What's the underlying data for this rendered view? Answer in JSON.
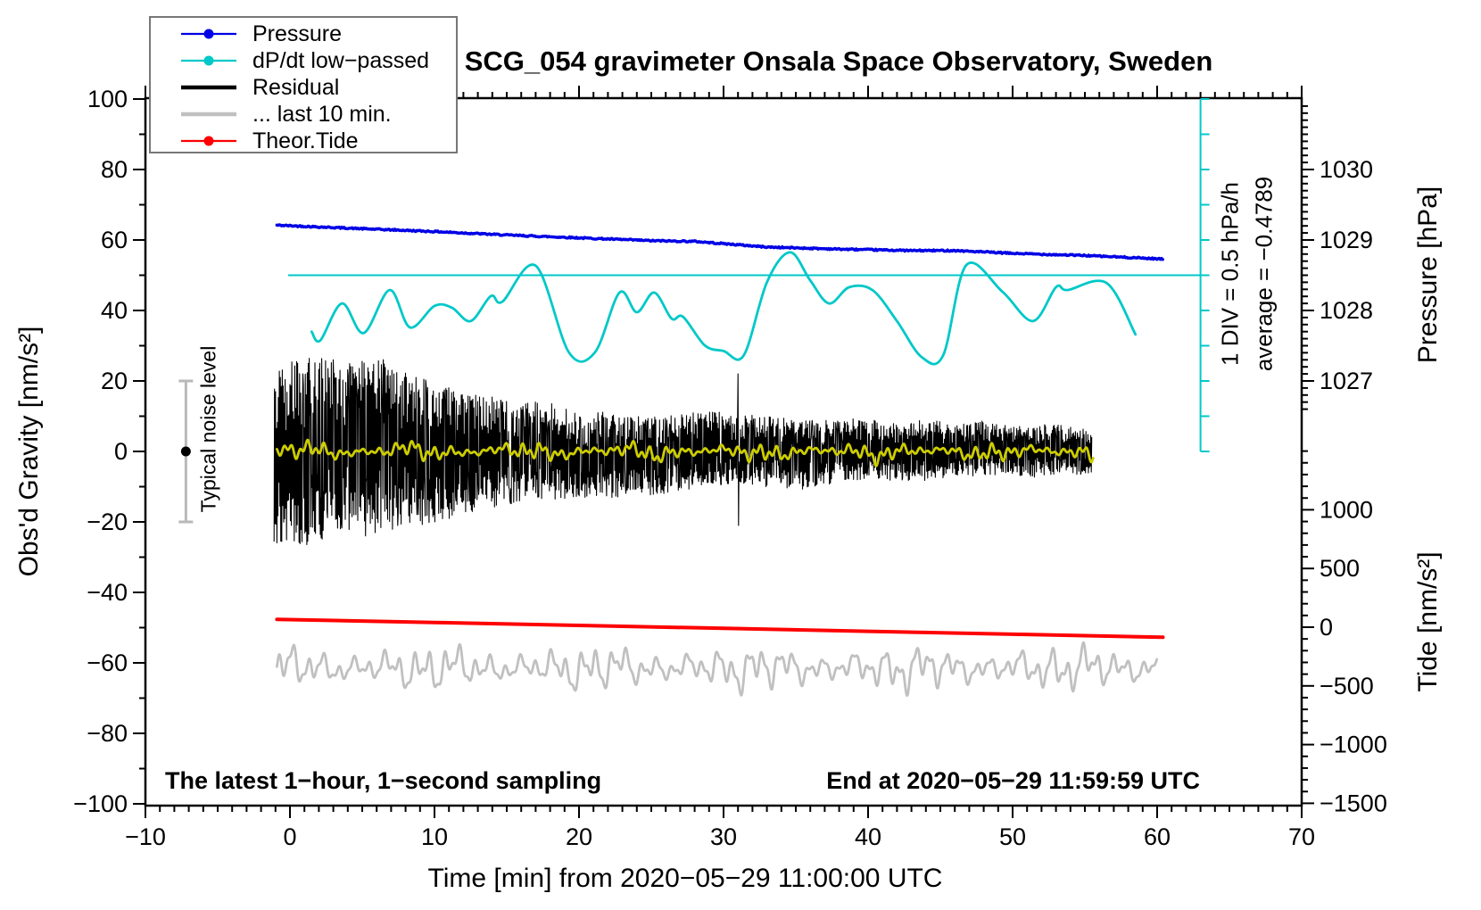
{
  "title": "SCG_054 gravimeter Onsala Space Observatory, Sweden",
  "notes": {
    "sampling": "The latest 1−hour, 1−second sampling",
    "end_time": "End at 2020−05−29 11:59:59 UTC"
  },
  "annotations": {
    "div_scale": "1 DIV = 0.5 hPa/h",
    "average": "average = −0.4789",
    "noise_level": "Typical noise level"
  },
  "legend": {
    "items": [
      {
        "label": "Pressure",
        "color": "#0000E6",
        "width": 2.2,
        "dot": true
      },
      {
        "label": "dP/dt low−passed",
        "color": "#00C8C8",
        "width": 2.2,
        "dot": true
      },
      {
        "label": "Residual",
        "color": "#000000",
        "width": 4.5,
        "dot": false
      },
      {
        "label": "... last 10 min.",
        "color": "#C0C0C0",
        "width": 4.5,
        "dot": false
      },
      {
        "label": "Theor.Tide",
        "color": "#FF0000",
        "width": 2.2,
        "dot": true
      }
    ]
  },
  "chart_data": {
    "type": "line",
    "x_axis": {
      "label": "Time [min] from 2020−05−29 11:00:00 UTC",
      "range": [
        -10,
        70
      ],
      "major_tick": 10,
      "minor_tick": 1,
      "tick_values": [
        -10,
        0,
        10,
        20,
        30,
        40,
        50,
        60,
        70
      ],
      "tick_labels": [
        "−10",
        "0",
        "10",
        "20",
        "30",
        "40",
        "50",
        "60",
        "70"
      ]
    },
    "gravity_axis": {
      "label": "Obs'd Gravity [nm/s²]",
      "range": [
        -100,
        100
      ],
      "major_tick": 20,
      "minor_tick": 10,
      "tick_values": [
        100,
        80,
        60,
        40,
        20,
        0,
        -20,
        -40,
        -60,
        -80,
        -100
      ],
      "tick_labels": [
        "100",
        "80",
        "60",
        "40",
        "20",
        "0",
        "−20",
        "−40",
        "−60",
        "−80",
        "−100"
      ]
    },
    "pressure_axis": {
      "label": "Pressure [hPa]",
      "tick_values": [
        1030,
        1029,
        1028,
        1027
      ],
      "tick_labels": [
        "1030",
        "1029",
        "1028",
        "1027"
      ],
      "minor_tick": 0.1
    },
    "tide_axis": {
      "label": "Tide [nm/s²]",
      "tick_values": [
        1000,
        500,
        0,
        -500,
        -1000,
        -1500
      ],
      "tick_labels": [
        "1000",
        "500",
        "0",
        "−500",
        "−1000",
        "−1500"
      ],
      "minor_tick": 100
    },
    "reference": {
      "dpdt_zero_line_nm_s2": 50,
      "scale_bar": {
        "x_min": 63,
        "gravity_top": 100,
        "gravity_bottom": 0,
        "divisions": 10,
        "color": "#00C8C8"
      }
    },
    "noise_bar": {
      "t": -7.2,
      "lo": -20,
      "hi": 20,
      "dot": 0,
      "color": "#B9B9B9"
    },
    "series": [
      {
        "name": "... last 10 min.",
        "axis": "gravity",
        "color": "#C0C0C0",
        "stroke": 2.8,
        "wave": {
          "baseline": -61.5,
          "t0": -0.9,
          "t1": 60.0,
          "step": 0.04,
          "components": [
            [
              1.05,
              2.6,
              0.3
            ],
            [
              2.3,
              2.0,
              1.8
            ],
            [
              0.52,
              1.2,
              3.9
            ],
            [
              5.5,
              0.8,
              0.9
            ]
          ],
          "amp_mod": [
            11,
            0.35,
            2.2
          ]
        }
      },
      {
        "name": "Theor.Tide",
        "axis": "tide",
        "color": "#FF0000",
        "stroke": 4,
        "points": [
          [
            -0.9,
            67
          ],
          [
            10,
            40
          ],
          [
            20,
            15
          ],
          [
            30,
            -10
          ],
          [
            40,
            -35
          ],
          [
            50,
            -60
          ],
          [
            60.4,
            -86
          ]
        ]
      },
      {
        "name": "Residual",
        "axis": "gravity",
        "color": "#000000",
        "stroke": 1.1,
        "noise": {
          "seed": 20200529,
          "t0": -1.1,
          "t1": 55.5,
          "step": 0.0333,
          "envelope": [
            [
              -1.1,
              26
            ],
            [
              2,
              27
            ],
            [
              4,
              24
            ],
            [
              6,
              26
            ],
            [
              8,
              22
            ],
            [
              10,
              20
            ],
            [
              12,
              18
            ],
            [
              14,
              16
            ],
            [
              16,
              14
            ],
            [
              18,
              14
            ],
            [
              20,
              12
            ],
            [
              22,
              12
            ],
            [
              24,
              11
            ],
            [
              26,
              11
            ],
            [
              28,
              11
            ],
            [
              30,
              10
            ],
            [
              32,
              10
            ],
            [
              34,
              10
            ],
            [
              36,
              9.5
            ],
            [
              38,
              9
            ],
            [
              40,
              8.5
            ],
            [
              42,
              8
            ],
            [
              44,
              8.5
            ],
            [
              46,
              7.5
            ],
            [
              48,
              7.5
            ],
            [
              50,
              7
            ],
            [
              52,
              7.5
            ],
            [
              54,
              6.5
            ],
            [
              55.5,
              6.5
            ]
          ],
          "spike": {
            "t": 31,
            "up": 22,
            "down": -21
          }
        }
      },
      {
        "name": "Residual smoothed",
        "axis": "gravity",
        "color": "#CDCD00",
        "stroke": 2.8,
        "wave": {
          "baseline": 0,
          "t0": -0.9,
          "t1": 55.6,
          "step": 0.04,
          "components": [
            [
              0.55,
              0.8,
              0
            ],
            [
              1.25,
              0.9,
              2.1
            ],
            [
              3.1,
              0.5,
              4.0
            ],
            [
              7.3,
              0.6,
              1.2
            ]
          ],
          "amp_mod": [
            7.9,
            0.5,
            0.7
          ]
        }
      },
      {
        "name": "Pressure",
        "axis": "pressure",
        "color": "#0000E6",
        "stroke": 3.5,
        "jitter": 0.01,
        "points": [
          [
            -0.9,
            1029.21
          ],
          [
            5,
            1029.16
          ],
          [
            10,
            1029.12
          ],
          [
            15,
            1029.07
          ],
          [
            20,
            1029.03
          ],
          [
            25,
            1028.99
          ],
          [
            28,
            1028.98
          ],
          [
            33,
            1028.9
          ],
          [
            38,
            1028.87
          ],
          [
            43,
            1028.85
          ],
          [
            46,
            1028.85
          ],
          [
            50,
            1028.81
          ],
          [
            55,
            1028.78
          ],
          [
            60.4,
            1028.73
          ]
        ]
      },
      {
        "name": "dP/dt low−passed",
        "axis": "gravity",
        "color": "#00C8C8",
        "stroke": 2.8,
        "smooth": true,
        "points": [
          [
            1.5,
            34
          ],
          [
            2.1,
            31.5
          ],
          [
            3.6,
            42
          ],
          [
            5.1,
            33.6
          ],
          [
            6.9,
            45.8
          ],
          [
            8.3,
            35.2
          ],
          [
            10,
            41.3
          ],
          [
            11.2,
            40.8
          ],
          [
            12.5,
            37
          ],
          [
            13.9,
            44.1
          ],
          [
            14.7,
            42.5
          ],
          [
            17,
            52.7
          ],
          [
            19.3,
            28.1
          ],
          [
            21.1,
            28.1
          ],
          [
            22.8,
            45.1
          ],
          [
            24,
            39.5
          ],
          [
            25.2,
            45.1
          ],
          [
            26.4,
            37.7
          ],
          [
            27.2,
            38.2
          ],
          [
            28.7,
            30.1
          ],
          [
            30,
            28.5
          ],
          [
            31.4,
            27.3
          ],
          [
            33,
            48
          ],
          [
            34.6,
            56.5
          ],
          [
            36,
            48.5
          ],
          [
            37.3,
            42
          ],
          [
            38.7,
            46.6
          ],
          [
            40.3,
            45.8
          ],
          [
            42,
            37
          ],
          [
            43.7,
            26.8
          ],
          [
            45.2,
            27.3
          ],
          [
            46.8,
            52.9
          ],
          [
            49.3,
            45.3
          ],
          [
            51.4,
            37
          ],
          [
            53,
            46.6
          ],
          [
            53.8,
            45.8
          ],
          [
            56.5,
            47.8
          ],
          [
            58.5,
            33.2
          ]
        ]
      }
    ]
  }
}
